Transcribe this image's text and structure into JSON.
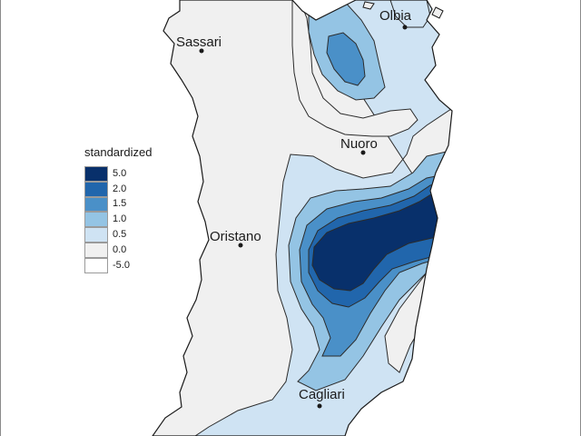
{
  "legend": {
    "title": "standardized",
    "items": [
      {
        "label": "5.0",
        "color": "#08306b"
      },
      {
        "label": "2.0",
        "color": "#2166ac"
      },
      {
        "label": "1.5",
        "color": "#4a90c8"
      },
      {
        "label": "1.0",
        "color": "#94c4e4"
      },
      {
        "label": "0.5",
        "color": "#cfe3f3"
      },
      {
        "label": "0.0",
        "color": "#f0f0f0"
      },
      {
        "label": "-5.0",
        "color": "#ffffff"
      }
    ]
  },
  "cities": [
    {
      "name": "Olbia"
    },
    {
      "name": "Sassari"
    },
    {
      "name": "Nuoro"
    },
    {
      "name": "Oristano"
    },
    {
      "name": "Cagliari"
    }
  ]
}
